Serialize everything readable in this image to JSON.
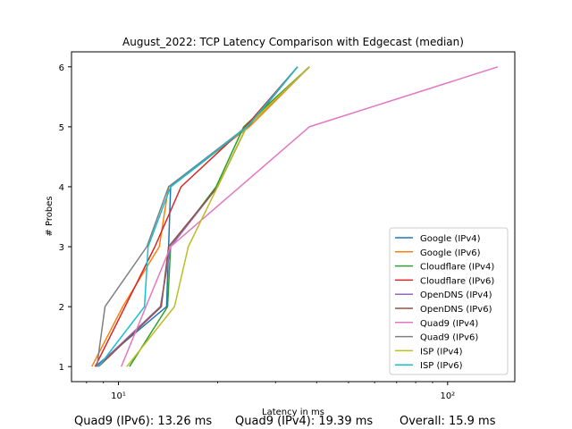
{
  "chart_data": {
    "type": "line",
    "title": "August_2022: TCP Latency Comparison with Edgecast (median)",
    "xlabel": "Latency in ms",
    "ylabel": "# Probes",
    "xscale": "log",
    "xlim": [
      7.2,
      160
    ],
    "ylim": [
      0.75,
      6.25
    ],
    "x_ticks": [
      {
        "value": 10,
        "label": "10¹"
      },
      {
        "value": 100,
        "label": "10²"
      }
    ],
    "y_ticks": [
      1,
      2,
      3,
      4,
      5,
      6
    ],
    "grid": false,
    "legend_position": "lower-right",
    "series": [
      {
        "name": "Google (IPv4)",
        "color": "#1f77b4",
        "x": [
          8.5,
          14.0,
          14.4,
          24.8,
          35.0
        ],
        "y": [
          1,
          2,
          4,
          5,
          6
        ]
      },
      {
        "name": "Google (IPv6)",
        "color": "#ff7f0e",
        "x": [
          8.3,
          10.3,
          13.3,
          14.2,
          25.0,
          38.0
        ],
        "y": [
          1,
          2,
          3,
          4,
          5,
          6
        ]
      },
      {
        "name": "Cloudflare (IPv4)",
        "color": "#2ca02c",
        "x": [
          10.8,
          14.1,
          14.4,
          19.8,
          24.0,
          38.0
        ],
        "y": [
          1,
          2,
          3,
          4,
          5,
          6
        ]
      },
      {
        "name": "Cloudflare (IPv6)",
        "color": "#d62728",
        "x": [
          8.5,
          12.9,
          15.5,
          24.3,
          35.0
        ],
        "y": [
          1,
          3,
          4,
          5,
          6
        ]
      },
      {
        "name": "OpenDNS (IPv4)",
        "color": "#9467bd",
        "x": [
          8.6,
          13.4,
          14.4,
          20.0,
          24.5,
          38.0
        ],
        "y": [
          1,
          2,
          3,
          4,
          5,
          6
        ]
      },
      {
        "name": "OpenDNS (IPv6)",
        "color": "#8c564b",
        "x": [
          8.7,
          13.5,
          14.2,
          20.0,
          24.5,
          38.0
        ],
        "y": [
          1,
          2,
          3,
          4,
          5,
          6
        ]
      },
      {
        "name": "Quad9 (IPv4)",
        "color": "#e377c2",
        "x": [
          10.2,
          14.4,
          38.0,
          142.0
        ],
        "y": [
          1,
          3,
          5,
          6
        ]
      },
      {
        "name": "Quad9 (IPv6)",
        "color": "#7f7f7f",
        "x": [
          8.6,
          9.1,
          12.2,
          14.2,
          24.5,
          38.0
        ],
        "y": [
          1,
          2,
          3,
          4,
          5,
          6
        ]
      },
      {
        "name": "ISP (IPv4)",
        "color": "#bcbd22",
        "x": [
          10.6,
          14.8,
          16.3,
          20.0,
          24.5,
          38.0
        ],
        "y": [
          1,
          2,
          3,
          4,
          5,
          6
        ]
      },
      {
        "name": "ISP (IPv6)",
        "color": "#17becf",
        "x": [
          8.7,
          12.0,
          12.3,
          14.4,
          24.6,
          35.0
        ],
        "y": [
          1,
          2,
          3,
          4,
          5,
          6
        ]
      }
    ]
  },
  "footer": {
    "text_1": "Quad9 (IPv6): 13.26 ms",
    "text_2": "Quad9 (IPv4): 19.39 ms",
    "text_3": "Overall: 15.9 ms"
  }
}
